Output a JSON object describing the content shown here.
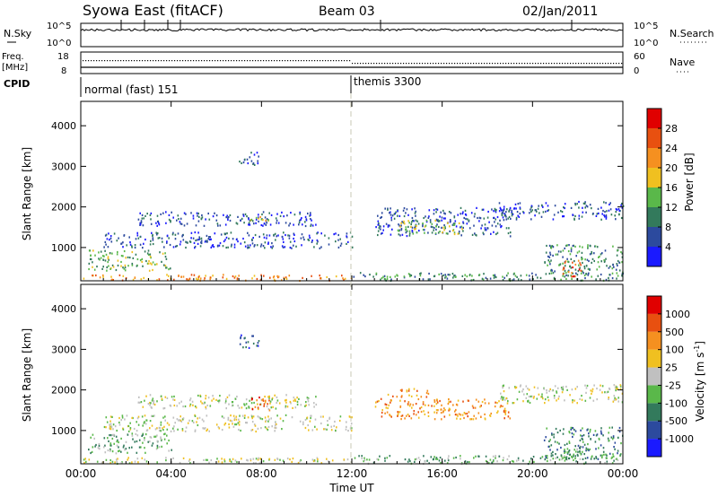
{
  "header": {
    "station": "Syowa East (fitACF)",
    "beam": "Beam 03",
    "date": "02/Jan/2011"
  },
  "top_panels": {
    "nsky_label": "N.Sky",
    "nsky_ticks": [
      "10^5",
      "10^0"
    ],
    "nsearch_label": "N.Search",
    "nsearch_ticks": [
      "10^5",
      "10^0"
    ],
    "freq_label": "Freq.",
    "freq_unit": "[MHz]",
    "freq_ticks": [
      "18",
      "8"
    ],
    "nave_label": "Nave",
    "nave_ticks": [
      "60",
      "0"
    ],
    "cpid_label": "CPID",
    "cpid_segments": [
      {
        "label": "normal (fast) 151",
        "start_hour": 0,
        "end_hour": 12
      },
      {
        "label": "themis 3300",
        "start_hour": 12,
        "end_hour": 24
      }
    ]
  },
  "chart_data": [
    {
      "type": "heatmap",
      "title": "Power",
      "xlabel": "Time UT",
      "ylabel": "Slant Range [km]",
      "xlim": [
        0,
        24
      ],
      "ylim": [
        180,
        4600
      ],
      "x_ticks": [
        "00:00",
        "04:00",
        "08:00",
        "12:00",
        "16:00",
        "20:00",
        "00:00"
      ],
      "y_ticks": [
        "1000",
        "2000",
        "3000",
        "4000"
      ],
      "colorbar": {
        "label": "Power [dB]",
        "ticks": [
          "4",
          "8",
          "12",
          "16",
          "20",
          "24",
          "28"
        ],
        "colors": [
          "#1a1aff",
          "#2c4a9e",
          "#337a5c",
          "#5ab84a",
          "#f0c020",
          "#f59020",
          "#e85010",
          "#e00000"
        ]
      },
      "echo_regions": [
        {
          "t0": 0.1,
          "t1": 12.0,
          "r0": 200,
          "r1": 350,
          "level": 5
        },
        {
          "t0": 0.3,
          "t1": 4.0,
          "r0": 450,
          "r1": 950,
          "level": 3
        },
        {
          "t0": 1.0,
          "t1": 12.0,
          "r0": 1000,
          "r1": 1400,
          "level": 1
        },
        {
          "t0": 2.5,
          "t1": 10.5,
          "r0": 1550,
          "r1": 1900,
          "level": 1
        },
        {
          "t0": 7.0,
          "t1": 7.9,
          "r0": 3050,
          "r1": 3400,
          "level": 1
        },
        {
          "t0": 7.5,
          "t1": 8.4,
          "r0": 1650,
          "r1": 1850,
          "level": 4
        },
        {
          "t0": 12.0,
          "t1": 24.0,
          "r0": 200,
          "r1": 400,
          "level": 2
        },
        {
          "t0": 13.0,
          "t1": 19.0,
          "r0": 1300,
          "r1": 2000,
          "level": 1
        },
        {
          "t0": 14.0,
          "t1": 17.0,
          "r0": 1350,
          "r1": 1700,
          "level": 3
        },
        {
          "t0": 18.5,
          "t1": 24.0,
          "r0": 1700,
          "r1": 2150,
          "level": 1
        },
        {
          "t0": 20.5,
          "t1": 24.0,
          "r0": 300,
          "r1": 1100,
          "level": 2
        },
        {
          "t0": 21.3,
          "t1": 22.2,
          "r0": 300,
          "r1": 700,
          "level": 6
        }
      ]
    },
    {
      "type": "heatmap",
      "title": "Velocity",
      "xlabel": "Time UT",
      "ylabel": "Slant Range [km]",
      "xlim": [
        0,
        24
      ],
      "ylim": [
        180,
        4600
      ],
      "x_ticks": [
        "00:00",
        "04:00",
        "08:00",
        "12:00",
        "16:00",
        "20:00",
        "00:00"
      ],
      "y_ticks": [
        "1000",
        "2000",
        "3000",
        "4000"
      ],
      "colorbar": {
        "label": "Velocity [m s",
        "label_sup": "-1",
        "label_end": "]",
        "ticks": [
          "1000",
          "500",
          "100",
          "25",
          "-25",
          "-100",
          "-500",
          "-1000"
        ],
        "colors": [
          "#1a1aff",
          "#2c4a9e",
          "#337a5c",
          "#5ab84a",
          "#c0c0c0",
          "#f0c020",
          "#f59020",
          "#e85010",
          "#e00000"
        ]
      },
      "echo_regions": [
        {
          "t0": 0.1,
          "t1": 12.0,
          "r0": 200,
          "r1": 350,
          "level": 4
        },
        {
          "t0": 0.3,
          "t1": 4.0,
          "r0": 450,
          "r1": 950,
          "level": 3
        },
        {
          "t0": 1.0,
          "t1": 12.0,
          "r0": 1000,
          "r1": 1400,
          "level": 4
        },
        {
          "t0": 2.5,
          "t1": 10.5,
          "r0": 1550,
          "r1": 1900,
          "level": 4
        },
        {
          "t0": 7.0,
          "t1": 7.9,
          "r0": 3050,
          "r1": 3400,
          "level": 1
        },
        {
          "t0": 7.5,
          "t1": 8.4,
          "r0": 1500,
          "r1": 1850,
          "level": 7
        },
        {
          "t0": 12.0,
          "t1": 24.0,
          "r0": 200,
          "r1": 400,
          "level": 3
        },
        {
          "t0": 13.5,
          "t1": 15.5,
          "r0": 1850,
          "r1": 2050,
          "level": 6
        },
        {
          "t0": 13.0,
          "t1": 19.0,
          "r0": 1300,
          "r1": 1800,
          "level": 6
        },
        {
          "t0": 18.5,
          "t1": 24.0,
          "r0": 1700,
          "r1": 2150,
          "level": 4
        },
        {
          "t0": 20.5,
          "t1": 24.0,
          "r0": 300,
          "r1": 1100,
          "level": 2
        },
        {
          "t0": 21.3,
          "t1": 22.2,
          "r0": 300,
          "r1": 700,
          "level": 3
        }
      ]
    }
  ]
}
